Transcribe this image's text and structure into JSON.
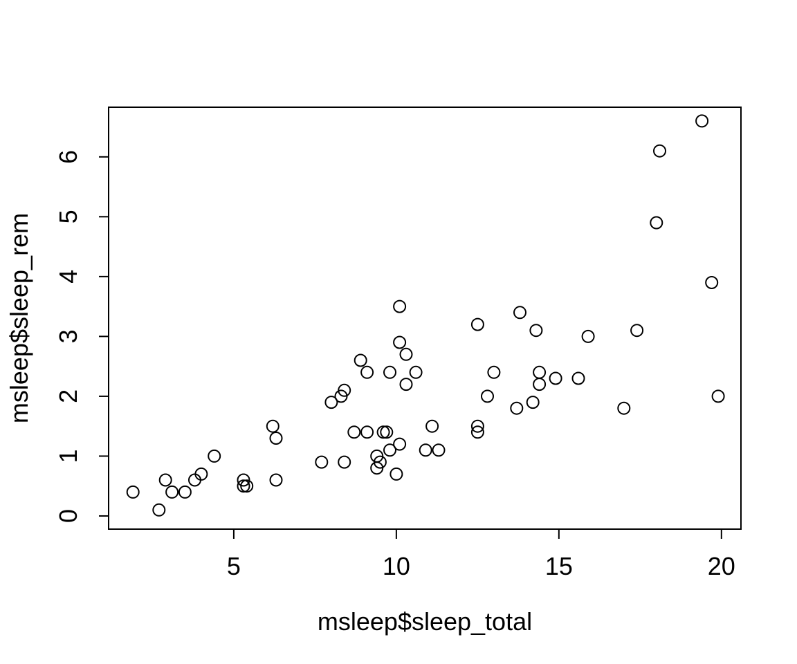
{
  "figure": {
    "background_color": "#ffffff",
    "foreground_color": "#000000"
  },
  "chart_data": {
    "type": "scatter",
    "title": "",
    "xlabel": "msleep$sleep_total",
    "ylabel": "msleep$sleep_rem",
    "marker": "open-circle",
    "marker_color": "#000000",
    "grid": false,
    "legend": false,
    "x_ticks": [
      5,
      10,
      15,
      20
    ],
    "y_ticks": [
      0,
      1,
      2,
      3,
      4,
      5,
      6
    ],
    "xlim": [
      1.15,
      20.6
    ],
    "ylim": [
      -0.22,
      6.83
    ],
    "points": [
      [
        17.0,
        1.8
      ],
      [
        14.4,
        2.4
      ],
      [
        14.9,
        2.3
      ],
      [
        4.0,
        0.7
      ],
      [
        14.4,
        2.2
      ],
      [
        8.7,
        1.4
      ],
      [
        10.1,
        2.9
      ],
      [
        5.3,
        0.6
      ],
      [
        9.4,
        0.8
      ],
      [
        10.0,
        0.7
      ],
      [
        12.5,
        1.5
      ],
      [
        10.3,
        2.2
      ],
      [
        8.3,
        2.0
      ],
      [
        9.1,
        1.4
      ],
      [
        17.4,
        3.1
      ],
      [
        5.3,
        0.5
      ],
      [
        18.0,
        4.9
      ],
      [
        19.7,
        3.9
      ],
      [
        2.9,
        0.6
      ],
      [
        3.1,
        0.4
      ],
      [
        10.1,
        3.5
      ],
      [
        10.9,
        1.1
      ],
      [
        12.5,
        3.2
      ],
      [
        9.8,
        1.1
      ],
      [
        1.9,
        0.4
      ],
      [
        2.7,
        0.1
      ],
      [
        6.2,
        1.5
      ],
      [
        6.3,
        0.6
      ],
      [
        8.0,
        1.9
      ],
      [
        9.5,
        0.9
      ],
      [
        19.4,
        6.6
      ],
      [
        10.1,
        1.2
      ],
      [
        14.2,
        1.9
      ],
      [
        14.3,
        3.1
      ],
      [
        12.5,
        1.4
      ],
      [
        19.9,
        2.0
      ],
      [
        7.7,
        0.9
      ],
      [
        8.4,
        0.9
      ],
      [
        3.8,
        0.6
      ],
      [
        9.7,
        1.4
      ],
      [
        9.4,
        1.0
      ],
      [
        10.3,
        2.7
      ],
      [
        13.7,
        1.8
      ],
      [
        3.5,
        0.4
      ],
      [
        11.1,
        1.5
      ],
      [
        18.1,
        6.1
      ],
      [
        5.4,
        0.5
      ],
      [
        13.0,
        2.4
      ],
      [
        9.6,
        1.4
      ],
      [
        8.4,
        2.1
      ],
      [
        11.3,
        1.1
      ],
      [
        10.6,
        2.4
      ],
      [
        13.8,
        3.4
      ],
      [
        15.9,
        3.0
      ],
      [
        12.8,
        2.0
      ],
      [
        9.1,
        2.4
      ],
      [
        4.4,
        1.0
      ],
      [
        15.6,
        2.3
      ],
      [
        8.9,
        2.6
      ],
      [
        6.3,
        1.3
      ],
      [
        9.8,
        2.4
      ]
    ]
  }
}
